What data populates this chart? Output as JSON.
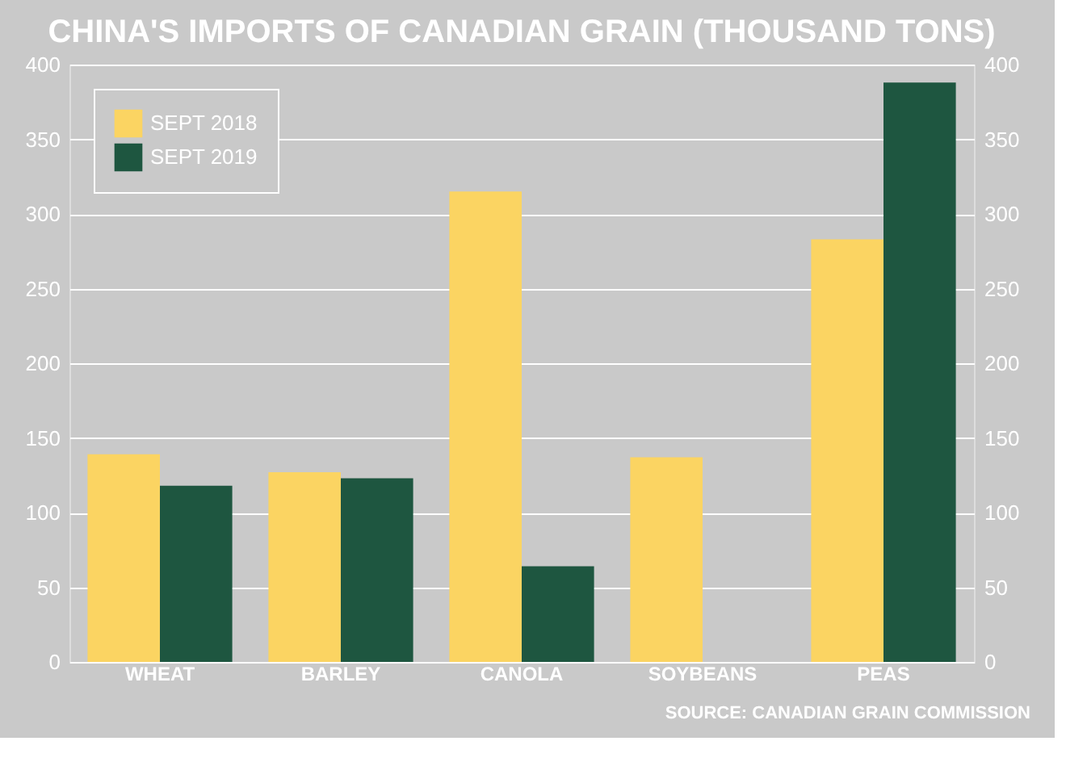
{
  "chart_data": {
    "type": "bar",
    "title": "CHINA'S IMPORTS OF CANADIAN GRAIN (THOUSAND TONS)",
    "categories": [
      "WHEAT",
      "BARLEY",
      "CANOLA",
      "SOYBEANS",
      "PEAS"
    ],
    "series": [
      {
        "name": "SEPT 2018",
        "color": "#fbd462",
        "values": [
          139,
          127,
          315,
          137,
          283
        ]
      },
      {
        "name": "SEPT 2019",
        "color": "#1e5640",
        "values": [
          118,
          123,
          64,
          0,
          388
        ]
      }
    ],
    "ylim": [
      0,
      400
    ],
    "yticks": [
      0,
      50,
      100,
      150,
      200,
      250,
      300,
      350,
      400
    ],
    "y2lim": [
      0,
      400
    ],
    "y2ticks": [
      0,
      50,
      100,
      150,
      200,
      250,
      300,
      350,
      400
    ],
    "grid": "y",
    "legend": "top left",
    "annotations": [
      "SOURCE: CANADIAN GRAIN COMMISSION"
    ]
  }
}
